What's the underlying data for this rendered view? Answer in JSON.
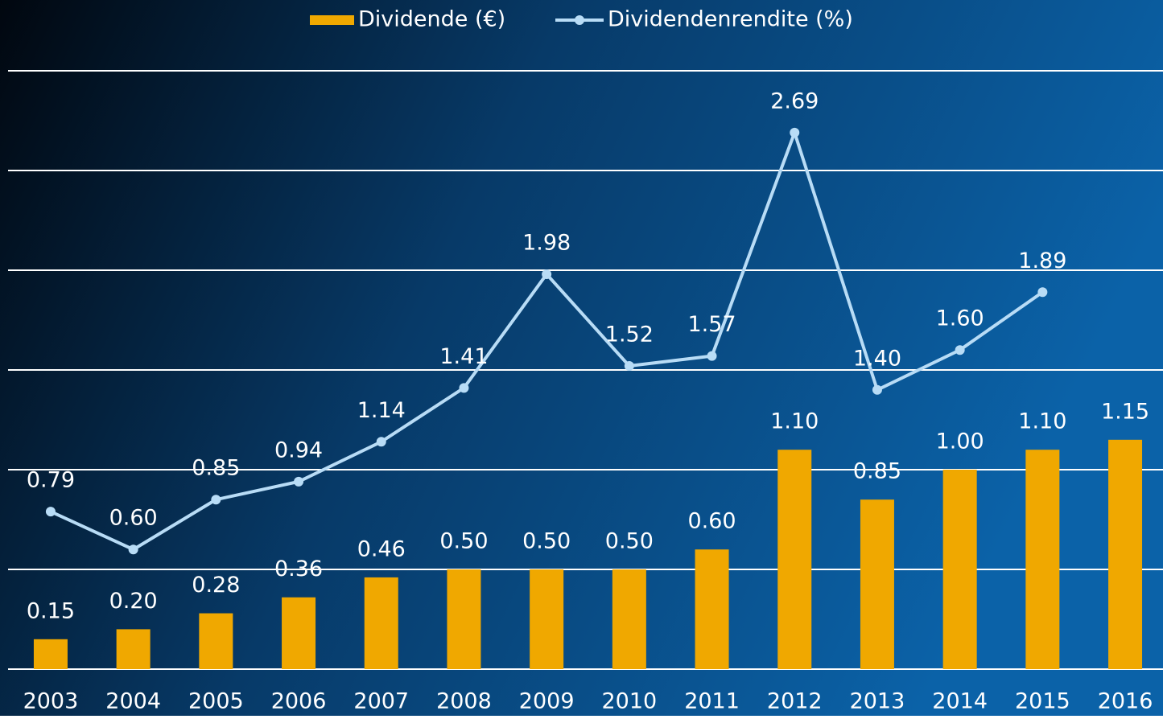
{
  "chart_data": {
    "type": "bar_line",
    "categories": [
      "2003",
      "2004",
      "2005",
      "2006",
      "2007",
      "2008",
      "2009",
      "2010",
      "2011",
      "2012",
      "2013",
      "2014",
      "2015",
      "2016"
    ],
    "series": [
      {
        "name": "Dividende (€)",
        "type": "bar",
        "color": "#f0a800",
        "values": [
          0.15,
          0.2,
          0.28,
          0.36,
          0.46,
          0.5,
          0.5,
          0.5,
          0.6,
          1.1,
          0.85,
          1.0,
          1.1,
          1.15
        ],
        "value_labels": [
          "0.15",
          "0.20",
          "0.28",
          "0.36",
          "0.46",
          "0.50",
          "0.50",
          "0.50",
          "0.60",
          "1.10",
          "0.85",
          "1.00",
          "1.10",
          "1.15"
        ]
      },
      {
        "name": "Dividendenrendite (%)",
        "type": "line",
        "color": "#b8dcf6",
        "values": [
          0.79,
          0.6,
          0.85,
          0.94,
          1.14,
          1.41,
          1.98,
          1.52,
          1.57,
          2.69,
          1.4,
          1.6,
          1.89,
          null
        ],
        "value_labels": [
          "0.79",
          "0.60",
          "0.85",
          "0.94",
          "1.14",
          "1.41",
          "1.98",
          "1.52",
          "1.57",
          "2.69",
          "1.40",
          "1.60",
          "1.89",
          null
        ]
      }
    ],
    "ylim": [
      0,
      3
    ],
    "yticks": [
      0,
      0.5,
      1,
      1.5,
      2,
      2.5,
      3
    ],
    "grid": true
  }
}
